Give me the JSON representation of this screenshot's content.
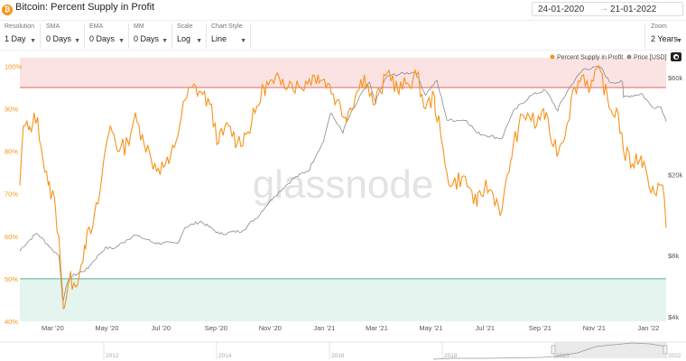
{
  "header": {
    "title": "Bitcoin: Percent Supply in Profit",
    "icon": "bitcoin-icon",
    "date_from": "24-01-2020",
    "date_to": "21-01-2022",
    "arrow": "→"
  },
  "controls": [
    {
      "label": "Resolution",
      "value": "1 Day"
    },
    {
      "label": "SMA",
      "value": "0 Days"
    },
    {
      "label": "EMA",
      "value": "0 Days"
    },
    {
      "label": "MM",
      "value": "0 Days"
    },
    {
      "label": "Scale",
      "value": "Log"
    },
    {
      "label": "Chart Style",
      "value": "Line"
    },
    {
      "label": "Zoom",
      "value": "2 Years"
    }
  ],
  "watermark": "glassnode",
  "chart_data": {
    "type": "line",
    "legend": [
      "Percent Supply in Profit",
      "Price [USD]"
    ],
    "legend_placement": "top-right",
    "colors": {
      "supply": "#f7931a",
      "price": "#8a8a8a",
      "upper_band": "#fbe3e3",
      "lower_band": "#e3f5ee",
      "upper_line": "#e06666",
      "lower_line": "#59b08e"
    },
    "x_ticks": [
      "Mar '20",
      "May '20",
      "Jul '20",
      "Sep '20",
      "Nov '20",
      "Jan '21",
      "Mar '21",
      "May '21",
      "Jul '21",
      "Sep '21",
      "Nov '21",
      "Jan '22"
    ],
    "y_left": {
      "ticks": [
        "40%",
        "50%",
        "60%",
        "70%",
        "80%",
        "90%",
        "100%"
      ],
      "range": [
        40,
        102
      ]
    },
    "y_right": {
      "ticks": [
        "$4k",
        "$8k",
        "$20k",
        "$60k"
      ],
      "scale": "log",
      "range": [
        3800,
        75000
      ]
    },
    "bands": {
      "upper_from": 95,
      "lower_to": 50
    },
    "percent_supply": [
      [
        "2020-01-24",
        72
      ],
      [
        "2020-01-28",
        86
      ],
      [
        "2020-02-03",
        85
      ],
      [
        "2020-02-08",
        87
      ],
      [
        "2020-02-13",
        88
      ],
      [
        "2020-02-19",
        78
      ],
      [
        "2020-02-25",
        72
      ],
      [
        "2020-03-03",
        69
      ],
      [
        "2020-03-08",
        60
      ],
      [
        "2020-03-12",
        47
      ],
      [
        "2020-03-13",
        43
      ],
      [
        "2020-03-16",
        45
      ],
      [
        "2020-03-20",
        50
      ],
      [
        "2020-03-25",
        49
      ],
      [
        "2020-03-31",
        51
      ],
      [
        "2020-04-06",
        58
      ],
      [
        "2020-04-15",
        62
      ],
      [
        "2020-04-23",
        70
      ],
      [
        "2020-04-29",
        80
      ],
      [
        "2020-05-05",
        86
      ],
      [
        "2020-05-09",
        84
      ],
      [
        "2020-05-15",
        80
      ],
      [
        "2020-05-25",
        82
      ],
      [
        "2020-06-01",
        88
      ],
      [
        "2020-06-10",
        84
      ],
      [
        "2020-06-20",
        78
      ],
      [
        "2020-06-28",
        76
      ],
      [
        "2020-07-10",
        77
      ],
      [
        "2020-07-22",
        86
      ],
      [
        "2020-07-28",
        92
      ],
      [
        "2020-08-05",
        95
      ],
      [
        "2020-08-15",
        94
      ],
      [
        "2020-08-25",
        91
      ],
      [
        "2020-09-04",
        82
      ],
      [
        "2020-09-15",
        86
      ],
      [
        "2020-09-25",
        82
      ],
      [
        "2020-10-05",
        84
      ],
      [
        "2020-10-15",
        89
      ],
      [
        "2020-10-25",
        95
      ],
      [
        "2020-11-05",
        96
      ],
      [
        "2020-11-15",
        97
      ],
      [
        "2020-11-25",
        96
      ],
      [
        "2020-12-05",
        95
      ],
      [
        "2020-12-15",
        97
      ],
      [
        "2020-12-25",
        98
      ],
      [
        "2021-01-05",
        96
      ],
      [
        "2021-01-15",
        92
      ],
      [
        "2021-01-25",
        88
      ],
      [
        "2021-02-05",
        93
      ],
      [
        "2021-02-15",
        98
      ],
      [
        "2021-02-25",
        91
      ],
      [
        "2021-03-05",
        94
      ],
      [
        "2021-03-15",
        99
      ],
      [
        "2021-03-25",
        94
      ],
      [
        "2021-04-05",
        96
      ],
      [
        "2021-04-15",
        98
      ],
      [
        "2021-04-25",
        90
      ],
      [
        "2021-05-05",
        93
      ],
      [
        "2021-05-12",
        84
      ],
      [
        "2021-05-19",
        75
      ],
      [
        "2021-05-25",
        72
      ],
      [
        "2021-06-05",
        74
      ],
      [
        "2021-06-15",
        71
      ],
      [
        "2021-06-22",
        67
      ],
      [
        "2021-07-01",
        72
      ],
      [
        "2021-07-10",
        70
      ],
      [
        "2021-07-20",
        66
      ],
      [
        "2021-07-30",
        78
      ],
      [
        "2021-08-08",
        86
      ],
      [
        "2021-08-18",
        89
      ],
      [
        "2021-08-28",
        86
      ],
      [
        "2021-09-05",
        90
      ],
      [
        "2021-09-12",
        84
      ],
      [
        "2021-09-22",
        80
      ],
      [
        "2021-10-01",
        86
      ],
      [
        "2021-10-10",
        95
      ],
      [
        "2021-10-20",
        98
      ],
      [
        "2021-10-28",
        95
      ],
      [
        "2021-11-08",
        99
      ],
      [
        "2021-11-18",
        90
      ],
      [
        "2021-11-28",
        89
      ],
      [
        "2021-12-04",
        80
      ],
      [
        "2021-12-14",
        77
      ],
      [
        "2021-12-24",
        79
      ],
      [
        "2021-12-31",
        74
      ],
      [
        "2022-01-08",
        70
      ],
      [
        "2022-01-14",
        72
      ],
      [
        "2022-01-19",
        69
      ],
      [
        "2022-01-21",
        62
      ]
    ],
    "price_usd": [
      [
        "2020-01-24",
        8400
      ],
      [
        "2020-02-12",
        10300
      ],
      [
        "2020-02-28",
        8700
      ],
      [
        "2020-03-08",
        8000
      ],
      [
        "2020-03-12",
        4900
      ],
      [
        "2020-03-13",
        4800
      ],
      [
        "2020-03-20",
        6200
      ],
      [
        "2020-04-10",
        6900
      ],
      [
        "2020-04-29",
        8700
      ],
      [
        "2020-05-10",
        8700
      ],
      [
        "2020-06-01",
        10100
      ],
      [
        "2020-06-25",
        9200
      ],
      [
        "2020-07-20",
        9200
      ],
      [
        "2020-07-28",
        11000
      ],
      [
        "2020-08-15",
        11800
      ],
      [
        "2020-09-05",
        10200
      ],
      [
        "2020-10-01",
        10600
      ],
      [
        "2020-10-21",
        12800
      ],
      [
        "2020-11-05",
        15500
      ],
      [
        "2020-11-25",
        18700
      ],
      [
        "2020-12-16",
        21300
      ],
      [
        "2020-12-31",
        29000
      ],
      [
        "2021-01-08",
        40000
      ],
      [
        "2021-01-22",
        32000
      ],
      [
        "2021-02-08",
        46000
      ],
      [
        "2021-02-21",
        57000
      ],
      [
        "2021-02-28",
        45000
      ],
      [
        "2021-03-13",
        61000
      ],
      [
        "2021-04-14",
        64000
      ],
      [
        "2021-04-25",
        49000
      ],
      [
        "2021-05-08",
        58000
      ],
      [
        "2021-05-19",
        37000
      ],
      [
        "2021-06-10",
        37000
      ],
      [
        "2021-06-22",
        32000
      ],
      [
        "2021-07-20",
        30000
      ],
      [
        "2021-08-01",
        40000
      ],
      [
        "2021-08-22",
        49000
      ],
      [
        "2021-09-07",
        52000
      ],
      [
        "2021-09-21",
        41000
      ],
      [
        "2021-10-06",
        55000
      ],
      [
        "2021-10-20",
        66000
      ],
      [
        "2021-11-08",
        67500
      ],
      [
        "2021-11-18",
        57000
      ],
      [
        "2021-12-03",
        57000
      ],
      [
        "2021-12-04",
        48000
      ],
      [
        "2021-12-25",
        50000
      ],
      [
        "2022-01-05",
        43000
      ],
      [
        "2022-01-15",
        43000
      ],
      [
        "2022-01-21",
        36500
      ]
    ],
    "navigator": {
      "labels": [
        "2012",
        "2014",
        "2016",
        "2018",
        "2020",
        "2022"
      ]
    }
  }
}
